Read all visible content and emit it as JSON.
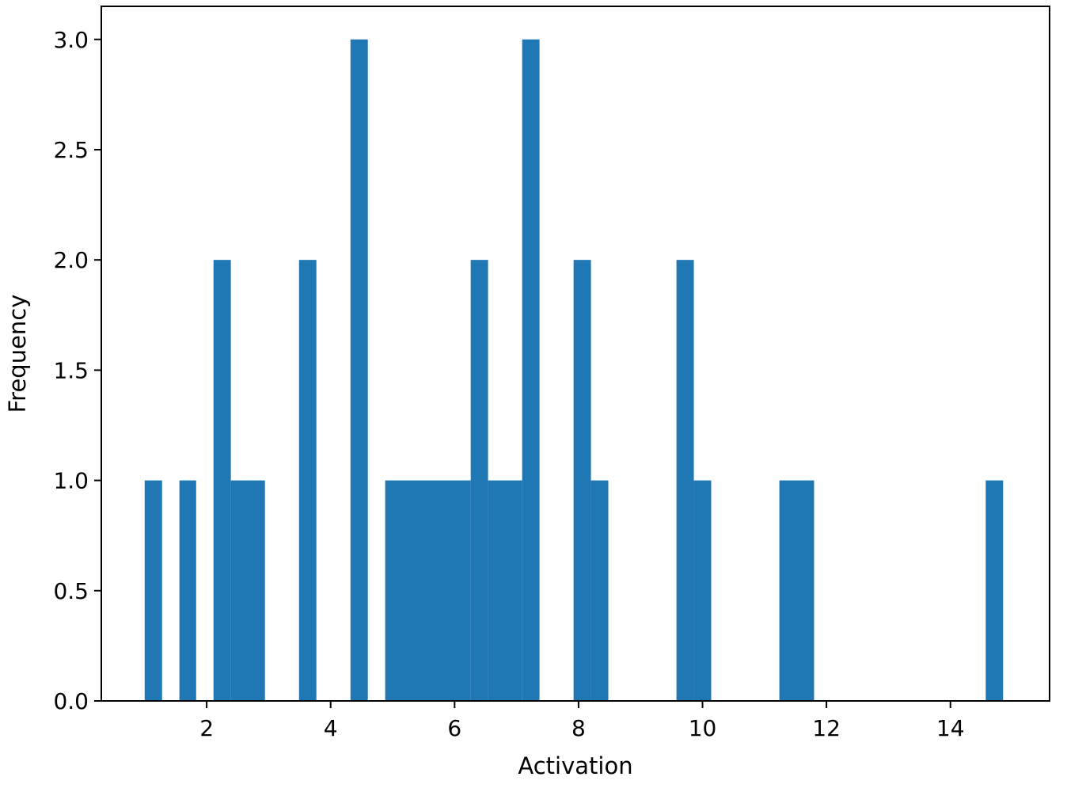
{
  "chart_data": {
    "type": "bar",
    "subtype": "histogram",
    "title": "",
    "xlabel": "Activation",
    "ylabel": "Frequency",
    "xlim": [
      0.3,
      15.6
    ],
    "ylim": [
      0,
      3.15
    ],
    "xticks": [
      2,
      4,
      6,
      8,
      10,
      12,
      14
    ],
    "xtick_labels": [
      "2",
      "4",
      "6",
      "8",
      "10",
      "12",
      "14"
    ],
    "yticks": [
      0.0,
      0.5,
      1.0,
      1.5,
      2.0,
      2.5,
      3.0
    ],
    "ytick_labels": [
      "0.0",
      "0.5",
      "1.0",
      "1.5",
      "2.0",
      "2.5",
      "3.0"
    ],
    "grid": false,
    "legend": "none",
    "color": "#1f77b4",
    "bins": [
      {
        "x0": 1.0,
        "x1": 1.28,
        "count": 1
      },
      {
        "x0": 1.56,
        "x1": 1.83,
        "count": 1
      },
      {
        "x0": 2.11,
        "x1": 2.39,
        "count": 2
      },
      {
        "x0": 2.39,
        "x1": 2.94,
        "count": 1
      },
      {
        "x0": 3.49,
        "x1": 3.77,
        "count": 2
      },
      {
        "x0": 4.32,
        "x1": 4.6,
        "count": 3
      },
      {
        "x0": 4.88,
        "x1": 6.26,
        "count": 1
      },
      {
        "x0": 6.26,
        "x1": 6.54,
        "count": 2
      },
      {
        "x0": 6.54,
        "x1": 7.09,
        "count": 1
      },
      {
        "x0": 7.09,
        "x1": 7.37,
        "count": 3
      },
      {
        "x0": 7.92,
        "x1": 8.2,
        "count": 2
      },
      {
        "x0": 8.2,
        "x1": 8.48,
        "count": 1
      },
      {
        "x0": 9.58,
        "x1": 9.86,
        "count": 2
      },
      {
        "x0": 9.86,
        "x1": 10.14,
        "count": 1
      },
      {
        "x0": 11.24,
        "x1": 11.8,
        "count": 1
      },
      {
        "x0": 14.57,
        "x1": 14.85,
        "count": 1
      }
    ]
  }
}
